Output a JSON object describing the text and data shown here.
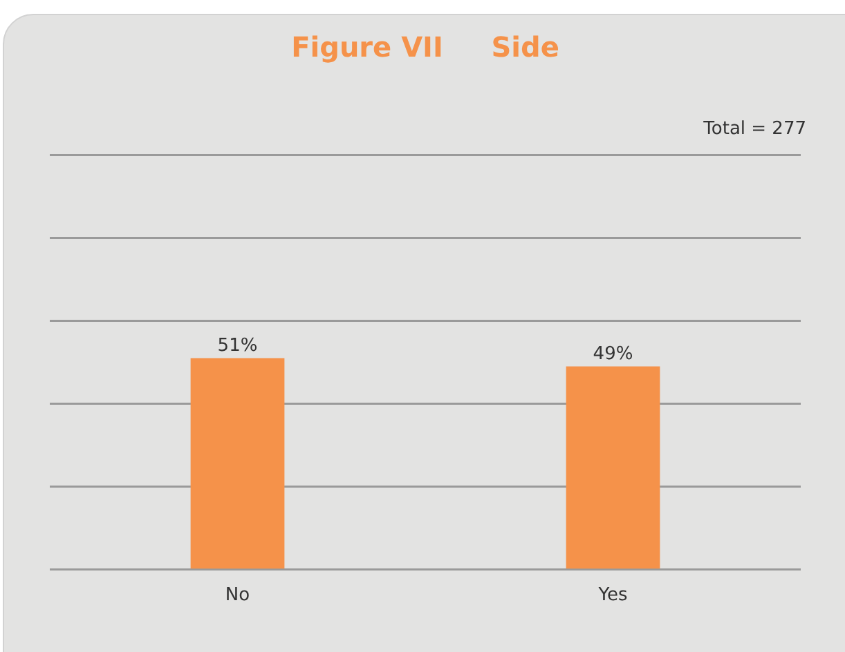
{
  "chart_data": {
    "type": "bar",
    "title": "Figure VII     Side",
    "categories": [
      "No",
      "Yes"
    ],
    "values": [
      51,
      49
    ],
    "value_labels": [
      "51%",
      "49%"
    ],
    "color": "#f5924a",
    "ylim": [
      0,
      100
    ],
    "yticks": [
      {
        "value": 0,
        "label": null
      },
      {
        "value": 20,
        "label": null
      },
      {
        "value": 40,
        "label": null
      },
      {
        "value": 60,
        "label": null
      },
      {
        "value": 80,
        "label": null
      },
      {
        "value": 100,
        "label": null
      }
    ],
    "grid": "y",
    "tick_labels": "x",
    "annotations": [
      "Total = 277"
    ]
  }
}
